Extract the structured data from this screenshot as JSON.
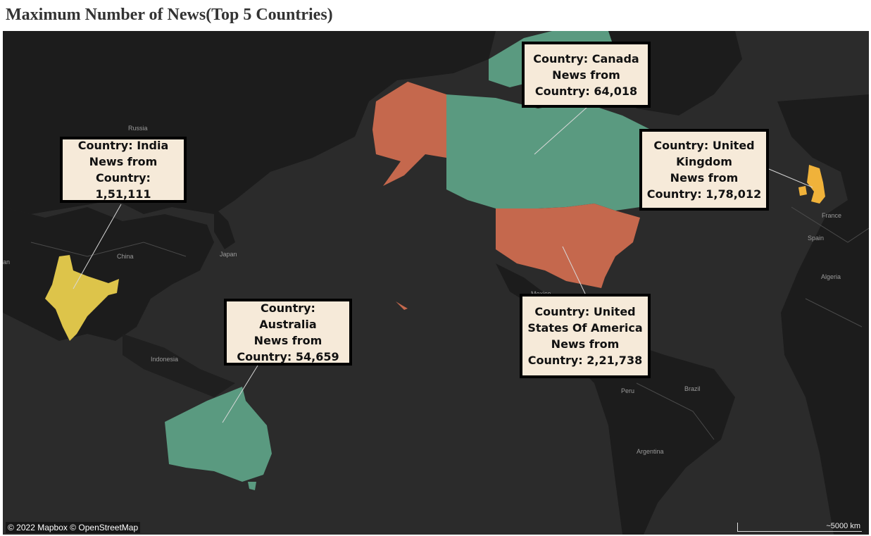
{
  "title": "Maximum Number of News(Top 5 Countries)",
  "colors": {
    "background": "#2b2b2b",
    "land": "#1c1c1c",
    "borders": "#4a4a4a",
    "green": "#5a9a80",
    "red": "#c5684d",
    "yellow": "#ddc44a",
    "orange": "#f0b23a",
    "callout_bg": "#f6ead9"
  },
  "place_labels": {
    "russia": "Russia",
    "china": "China",
    "japan": "Japan",
    "indonesia": "Indonesia",
    "france": "France",
    "spain": "Spain",
    "algeria": "Algeria",
    "peru": "Peru",
    "brazil": "Brazil",
    "argentina": "Argentina",
    "mexico": "Mexico",
    "west_edge": "an"
  },
  "callouts": {
    "canada": {
      "line1": "Country: Canada",
      "line2": "News from",
      "line3": "Country: 64,018"
    },
    "uk": {
      "line1": "Country: United",
      "line2": "Kingdom",
      "line3": "News from",
      "line4": "Country: 1,78,012"
    },
    "india": {
      "line1": "Country: India",
      "line2": "News from",
      "line3": "Country: 1,51,111"
    },
    "australia": {
      "line1": "Country: Australia",
      "line2": "News from",
      "line3": "Country: 54,659"
    },
    "usa": {
      "line1": "Country: United",
      "line2": "States Of America",
      "line3": "News from",
      "line4": "Country: 2,21,738"
    }
  },
  "attribution": "© 2022 Mapbox © OpenStreetMap",
  "scale_label": "~5000 km"
}
